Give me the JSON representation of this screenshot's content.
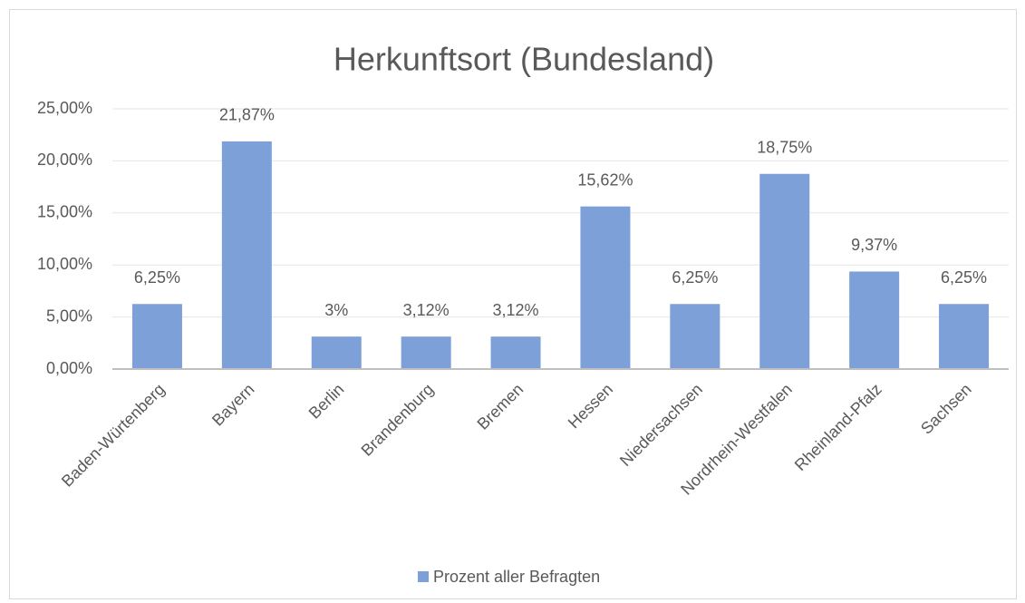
{
  "chart_data": {
    "type": "bar",
    "title": "Herkunftsort (Bundesland)",
    "categories": [
      "Baden-Würtenberg",
      "Bayern",
      "Berlin",
      "Brandenburg",
      "Bremen",
      "Hessen",
      "Niedersachsen",
      "Nordrhein-Westfalen",
      "Rheinland-Pfalz",
      "Sachsen"
    ],
    "series": [
      {
        "name": "Prozent aller Befragten",
        "color": "#7da0d9",
        "values": [
          6.25,
          21.87,
          3.12,
          3.12,
          3.12,
          15.62,
          6.25,
          18.75,
          9.37,
          6.25
        ],
        "value_labels": [
          "6,25%",
          "21,87%",
          "3%",
          "3,12%",
          "3,12%",
          "15,62%",
          "6,25%",
          "18,75%",
          "9,37%",
          "6,25%"
        ]
      }
    ],
    "ylim": [
      0,
      25
    ],
    "yticks": [
      {
        "value": 0,
        "label": "0,00%"
      },
      {
        "value": 5,
        "label": "5,00%"
      },
      {
        "value": 10,
        "label": "10,00%"
      },
      {
        "value": 15,
        "label": "15,00%"
      },
      {
        "value": 20,
        "label": "20,00%"
      },
      {
        "value": 25,
        "label": "25,00%"
      }
    ],
    "grid": true,
    "legend": "bottom"
  }
}
